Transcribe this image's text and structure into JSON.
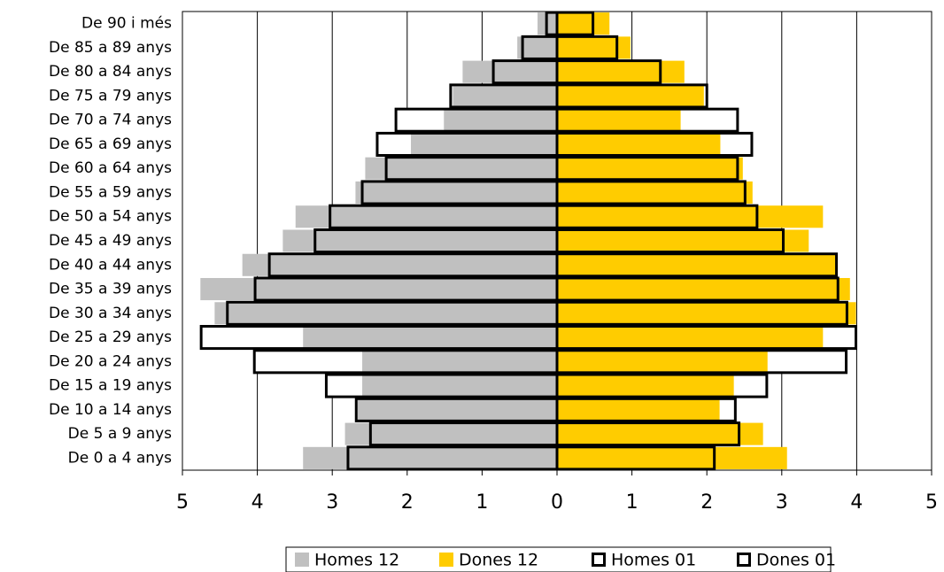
{
  "chart_data": {
    "type": "pyramid",
    "categories": [
      "De 0 a 4 anys",
      "De 5 a 9 anys",
      "De 10 a 14 anys",
      "De 15 a 19 anys",
      "De 20 a 24 anys",
      "De 25 a 29 anys",
      "De 30 a 34 anys",
      "De 35 a 39 anys",
      "De 40 a 44 anys",
      "De 45 a 49 anys",
      "De 50 a 54 anys",
      "De 55 a 59 anys",
      "De 60 a 64 anys",
      "De 65 a 69 anys",
      "De 70 a 74 anys",
      "De 75 a 79 anys",
      "De 80 a 84 anys",
      "De 85 a 89 anys",
      "De 90 i més"
    ],
    "series": [
      {
        "name": "Homes 12",
        "color": "#c0c0c0",
        "outline": false,
        "values": [
          -3.39,
          -2.83,
          -2.66,
          -2.6,
          -2.6,
          -3.39,
          -4.57,
          -4.76,
          -4.2,
          -3.66,
          -3.49,
          -2.69,
          -2.56,
          -1.95,
          -1.51,
          -1.39,
          -1.26,
          -0.53,
          -0.26
        ]
      },
      {
        "name": "Dones 12",
        "color": "#ffcc00",
        "outline": false,
        "values": [
          3.07,
          2.75,
          2.17,
          2.36,
          2.81,
          3.55,
          3.99,
          3.91,
          3.72,
          3.36,
          3.55,
          2.61,
          2.48,
          2.18,
          1.65,
          1.96,
          1.7,
          0.98,
          0.7
        ]
      },
      {
        "name": "Homes 01",
        "color": "#000000",
        "outline": true,
        "values": [
          -2.79,
          -2.49,
          -2.68,
          -3.08,
          -4.04,
          -4.75,
          -4.4,
          -4.03,
          -3.84,
          -3.23,
          -3.03,
          -2.6,
          -2.28,
          -2.4,
          -2.15,
          -1.42,
          -0.85,
          -0.46,
          -0.14
        ]
      },
      {
        "name": "Dones 01",
        "color": "#000000",
        "outline": true,
        "values": [
          2.1,
          2.43,
          2.38,
          2.8,
          3.86,
          3.99,
          3.87,
          3.75,
          3.73,
          3.02,
          2.67,
          2.51,
          2.41,
          2.6,
          2.41,
          2.0,
          1.38,
          0.8,
          0.48
        ]
      }
    ],
    "xlim": [
      -5,
      5
    ],
    "xticks": [
      {
        "value": -5,
        "label": "5"
      },
      {
        "value": -4,
        "label": "4"
      },
      {
        "value": -3,
        "label": "3"
      },
      {
        "value": -2,
        "label": "2"
      },
      {
        "value": -1,
        "label": "1"
      },
      0,
      1,
      2,
      3,
      4,
      5
    ],
    "grid": true,
    "legend": "bottom"
  }
}
